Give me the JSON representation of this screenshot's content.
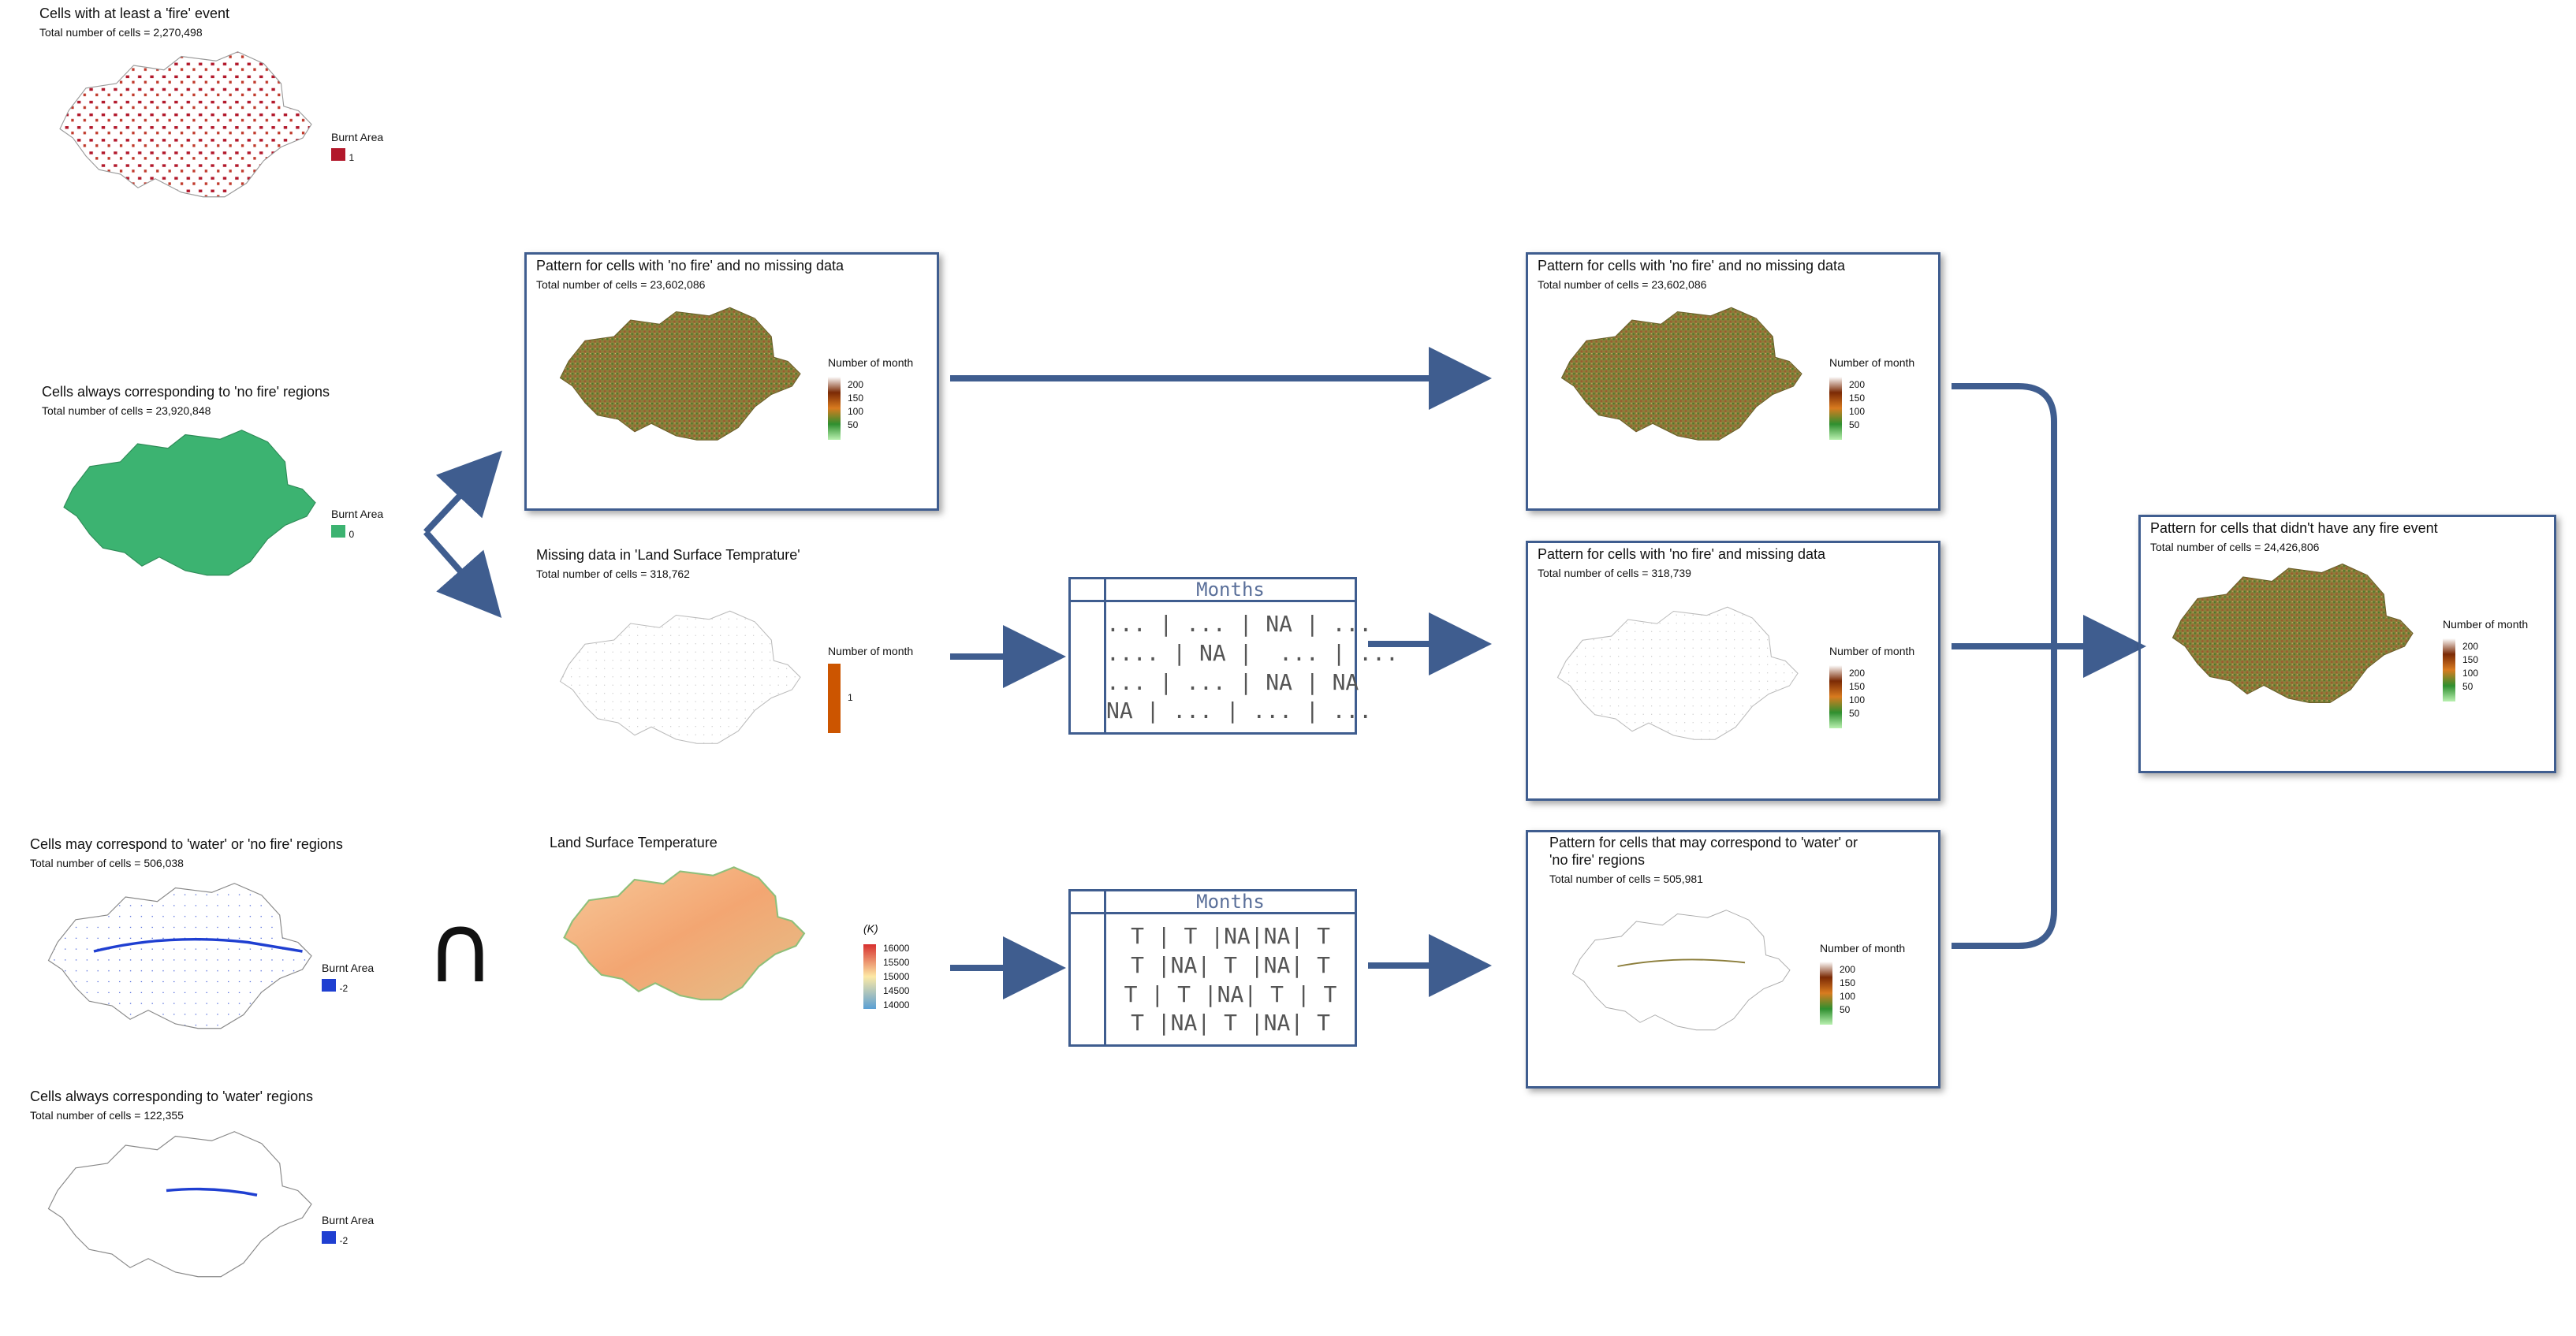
{
  "colors": {
    "frame": "#3f5d8f",
    "fire": "#b2182b",
    "nofire": "#3cb371",
    "water": "#1f3fd1",
    "missing": "#cc5500",
    "pattern": "#8b7d3a"
  },
  "panels": {
    "fire": {
      "title": "Cells with at least a 'fire' event",
      "sub": "Total number of cells = 2,270,498",
      "legend_title": "Burnt Area",
      "legend_value": "1"
    },
    "nofire": {
      "title": "Cells always corresponding to 'no fire' regions",
      "sub": "Total number of cells = 23,920,848",
      "legend_title": "Burnt Area",
      "legend_value": "0"
    },
    "water_or_nofire": {
      "title": "Cells may correspond to  'water' or 'no fire' regions",
      "sub": "Total number of cells = 506,038",
      "legend_title": "Burnt Area",
      "legend_value": "-2"
    },
    "water": {
      "title": "Cells always corresponding to 'water' regions",
      "sub": "Total number of cells = 122,355",
      "legend_title": "Burnt Area",
      "legend_value": "-2"
    },
    "pattern_nomissing": {
      "title": "Pattern for cells with 'no fire' and no missing data",
      "sub": "Total number of cells = 23,602,086",
      "legend_title": "Number of month",
      "ticks": [
        "200",
        "150",
        "100",
        "50"
      ]
    },
    "missing_lst": {
      "title": "Missing data in 'Land Surface Temprature'",
      "sub": "Total number of cells = 318,762",
      "legend_title": "Number of month",
      "legend_value": "1"
    },
    "lst": {
      "title": "Land Surface Temperature",
      "legend_title": "(K)",
      "ticks": [
        "16000",
        "15500",
        "15000",
        "14500",
        "14000"
      ]
    },
    "result_nomissing": {
      "title": "Pattern for cells with 'no fire' and no missing data",
      "sub": "Total number of cells = 23,602,086",
      "legend_title": "Number of month",
      "ticks": [
        "200",
        "150",
        "100",
        "50"
      ]
    },
    "result_missing": {
      "title": "Pattern for cells with 'no fire' and missing data",
      "sub": "Total number of cells = 318,739",
      "legend_title": "Number of month",
      "ticks": [
        "200",
        "150",
        "100",
        "50"
      ]
    },
    "result_water": {
      "title1": "Pattern for cells that may correspond to 'water' or",
      "title2": "'no fire' regions",
      "sub": "Total number of cells = 505,981",
      "legend_title": "Number of month",
      "ticks": [
        "200",
        "150",
        "100",
        "50"
      ]
    },
    "final": {
      "title": "Pattern for cells that didn't have any fire event",
      "sub": "Total number of cells = 24,426,806",
      "legend_title": "Number of month",
      "ticks": [
        "200",
        "150",
        "100",
        "50"
      ]
    }
  },
  "intersection_symbol": "∩",
  "table1": {
    "header": "Months",
    "rows": [
      "... | ... | NA | ...",
      ".... | NA |  ... | ...",
      "... | ... | NA | NA",
      "NA | ... | ... | ..."
    ]
  },
  "table2": {
    "header": "Months",
    "rows": [
      "T | T |NA|NA| T",
      "T |NA| T |NA| T",
      "T | T |NA| T | T",
      "T |NA| T |NA| T"
    ]
  }
}
